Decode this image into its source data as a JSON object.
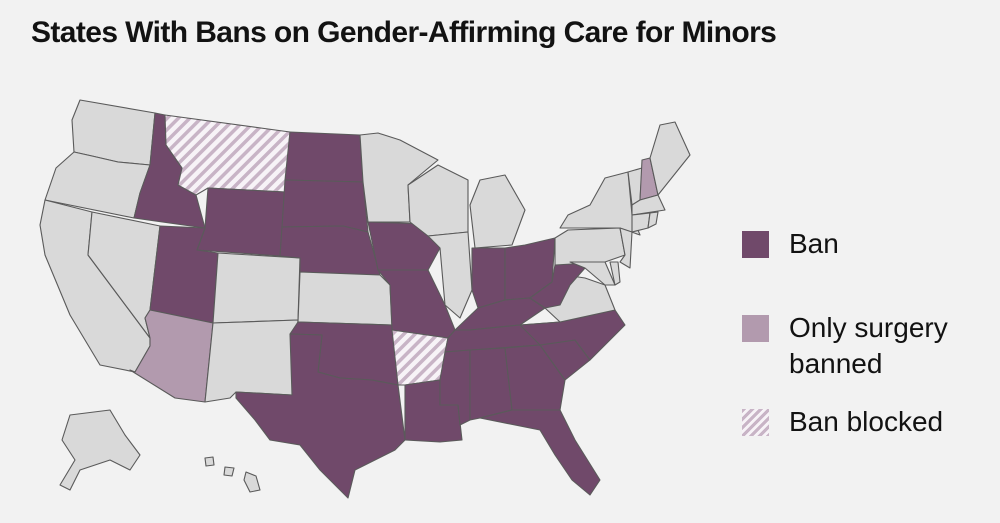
{
  "title": "States With Bans on Gender-Affirming Care for Minors",
  "colors": {
    "ban": "#70496a",
    "only_surgery_banned": "#b29aae",
    "ban_blocked_stripe": "#c8b4c6",
    "no_ban": "#d9d9d9",
    "border": "#5a5a5a",
    "background": "#f2f2f2"
  },
  "legend": [
    {
      "key": "ban",
      "label": "Ban"
    },
    {
      "key": "only_surgery_banned",
      "label": "Only surgery banned"
    },
    {
      "key": "ban_blocked",
      "label": "Ban blocked"
    }
  ],
  "states": {
    "WA": "none",
    "OR": "none",
    "CA": "none",
    "NV": "none",
    "ID": "ban",
    "MT": "ban_blocked",
    "WY": "ban",
    "UT": "ban",
    "AZ": "only_surgery_banned",
    "CO": "none",
    "NM": "none",
    "ND": "ban",
    "SD": "ban",
    "NE": "ban",
    "KS": "none",
    "OK": "ban",
    "TX": "ban",
    "MN": "none",
    "IA": "ban",
    "MO": "ban",
    "AR": "ban_blocked",
    "LA": "ban",
    "WI": "none",
    "IL": "none",
    "MI": "none",
    "IN": "ban",
    "OH": "ban",
    "KY": "ban",
    "TN": "ban",
    "MS": "ban",
    "AL": "ban",
    "GA": "ban",
    "FL": "ban",
    "SC": "ban",
    "NC": "ban",
    "VA": "none",
    "WV": "ban",
    "PA": "none",
    "NY": "none",
    "VT": "none",
    "NH": "only_surgery_banned",
    "ME": "none",
    "MA": "none",
    "CT": "none",
    "RI": "none",
    "NJ": "none",
    "DE": "none",
    "MD": "none",
    "AK": "none",
    "HI": "none"
  }
}
